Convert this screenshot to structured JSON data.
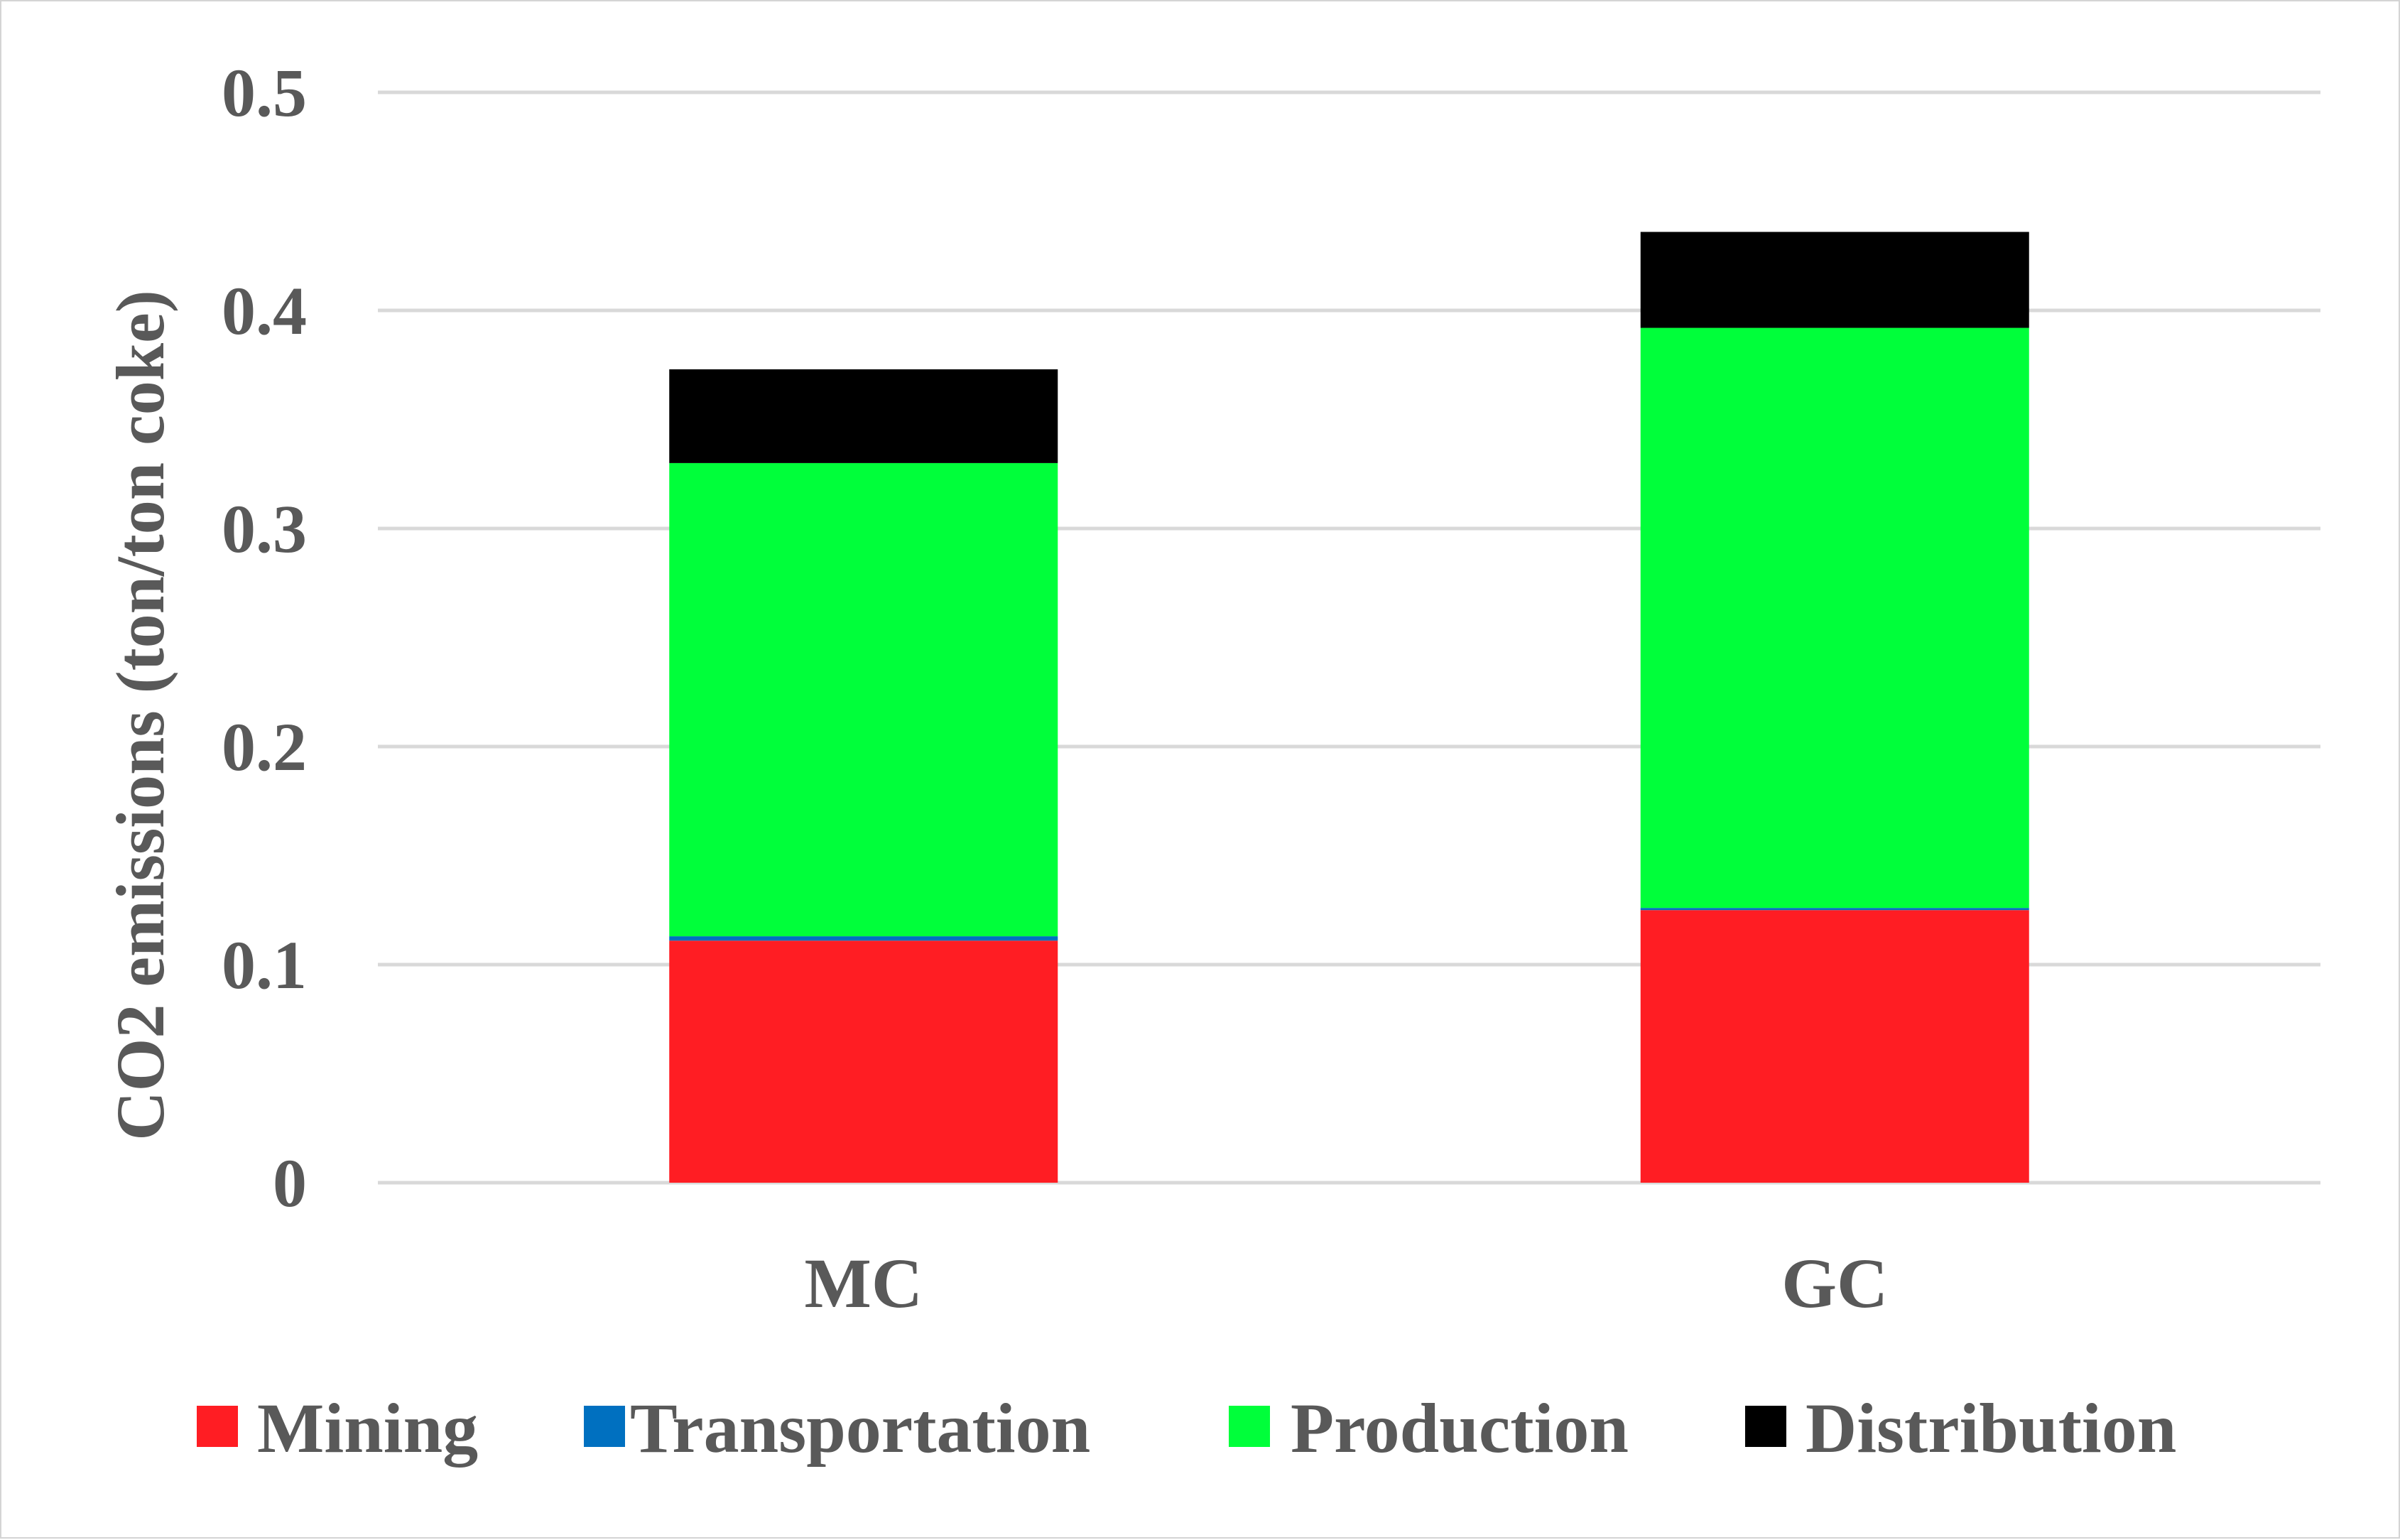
{
  "chart_data": {
    "type": "bar",
    "stacked": true,
    "categories": [
      "MC",
      "GC"
    ],
    "series": [
      {
        "name": "Mining",
        "color": "#ff1d23",
        "values": [
          0.111,
          0.125
        ]
      },
      {
        "name": "Transportation",
        "color": "#0070c0",
        "values": [
          0.002,
          0.001
        ]
      },
      {
        "name": "Production",
        "color": "#00ff3a",
        "values": [
          0.217,
          0.266
        ]
      },
      {
        "name": "Distribution",
        "color": "#000000",
        "values": [
          0.043,
          0.044
        ]
      }
    ],
    "title": "",
    "xlabel": "",
    "ylabel": "CO2 emissions (ton/ton coke)",
    "ylim": [
      0,
      0.5
    ],
    "yticks": [
      {
        "value": 0,
        "label": "0"
      },
      {
        "value": 0.1,
        "label": "0.1"
      },
      {
        "value": 0.2,
        "label": "0.2"
      },
      {
        "value": 0.3,
        "label": "0.3"
      },
      {
        "value": 0.4,
        "label": "0.4"
      },
      {
        "value": 0.5,
        "label": "0.5"
      }
    ],
    "grid": true,
    "legend_position": "bottom"
  }
}
